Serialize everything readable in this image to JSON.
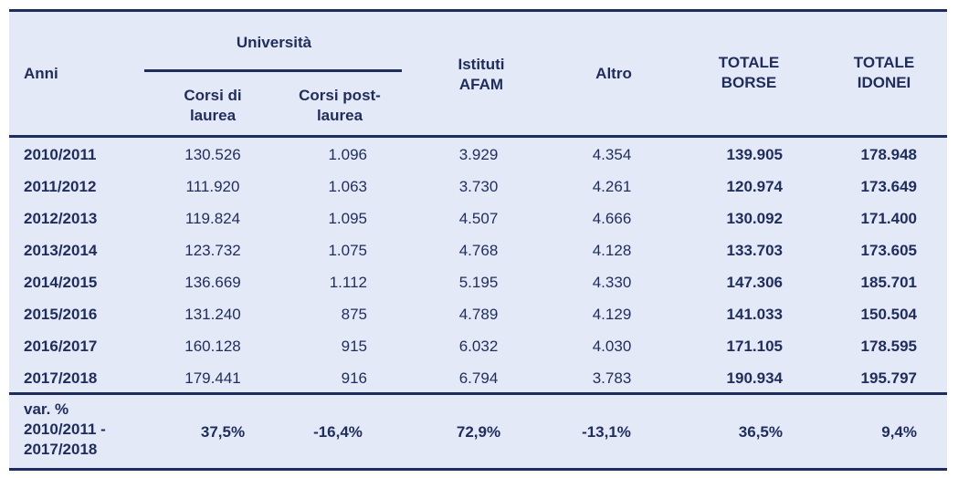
{
  "colors": {
    "navy": "#1f2d5c",
    "panel": "#e3e9f6"
  },
  "header": {
    "anni": "Anni",
    "universita": "Università",
    "corsi_laurea": "Corsi di laurea",
    "corsi_post": "Corsi post-laurea",
    "istituti": "Istituti AFAM",
    "altro": "Altro",
    "totale_borse": "TOTALE BORSE",
    "totale_idonei": "TOTALE IDONEI"
  },
  "rows": [
    {
      "anno": "2010/2011",
      "laurea": "130.526",
      "post": "1.096",
      "afam": "3.929",
      "altro": "4.354",
      "borse": "139.905",
      "idonei": "178.948"
    },
    {
      "anno": "2011/2012",
      "laurea": "111.920",
      "post": "1.063",
      "afam": "3.730",
      "altro": "4.261",
      "borse": "120.974",
      "idonei": "173.649"
    },
    {
      "anno": "2012/2013",
      "laurea": "119.824",
      "post": "1.095",
      "afam": "4.507",
      "altro": "4.666",
      "borse": "130.092",
      "idonei": "171.400"
    },
    {
      "anno": "2013/2014",
      "laurea": "123.732",
      "post": "1.075",
      "afam": "4.768",
      "altro": "4.128",
      "borse": "133.703",
      "idonei": "173.605"
    },
    {
      "anno": "2014/2015",
      "laurea": "136.669",
      "post": "1.112",
      "afam": "5.195",
      "altro": "4.330",
      "borse": "147.306",
      "idonei": "185.701"
    },
    {
      "anno": "2015/2016",
      "laurea": "131.240",
      "post": "875",
      "afam": "4.789",
      "altro": "4.129",
      "borse": "141.033",
      "idonei": "150.504"
    },
    {
      "anno": "2016/2017",
      "laurea": "160.128",
      "post": "915",
      "afam": "6.032",
      "altro": "4.030",
      "borse": "171.105",
      "idonei": "178.595"
    },
    {
      "anno": "2017/2018",
      "laurea": "179.441",
      "post": "916",
      "afam": "6.794",
      "altro": "3.783",
      "borse": "190.934",
      "idonei": "195.797"
    }
  ],
  "var": {
    "label": "var. % 2010/2011 - 2017/2018",
    "laurea": "37,5%",
    "post": "-16,4%",
    "afam": "72,9%",
    "altro": "-13,1%",
    "borse": "36,5%",
    "idonei": "9,4%"
  }
}
